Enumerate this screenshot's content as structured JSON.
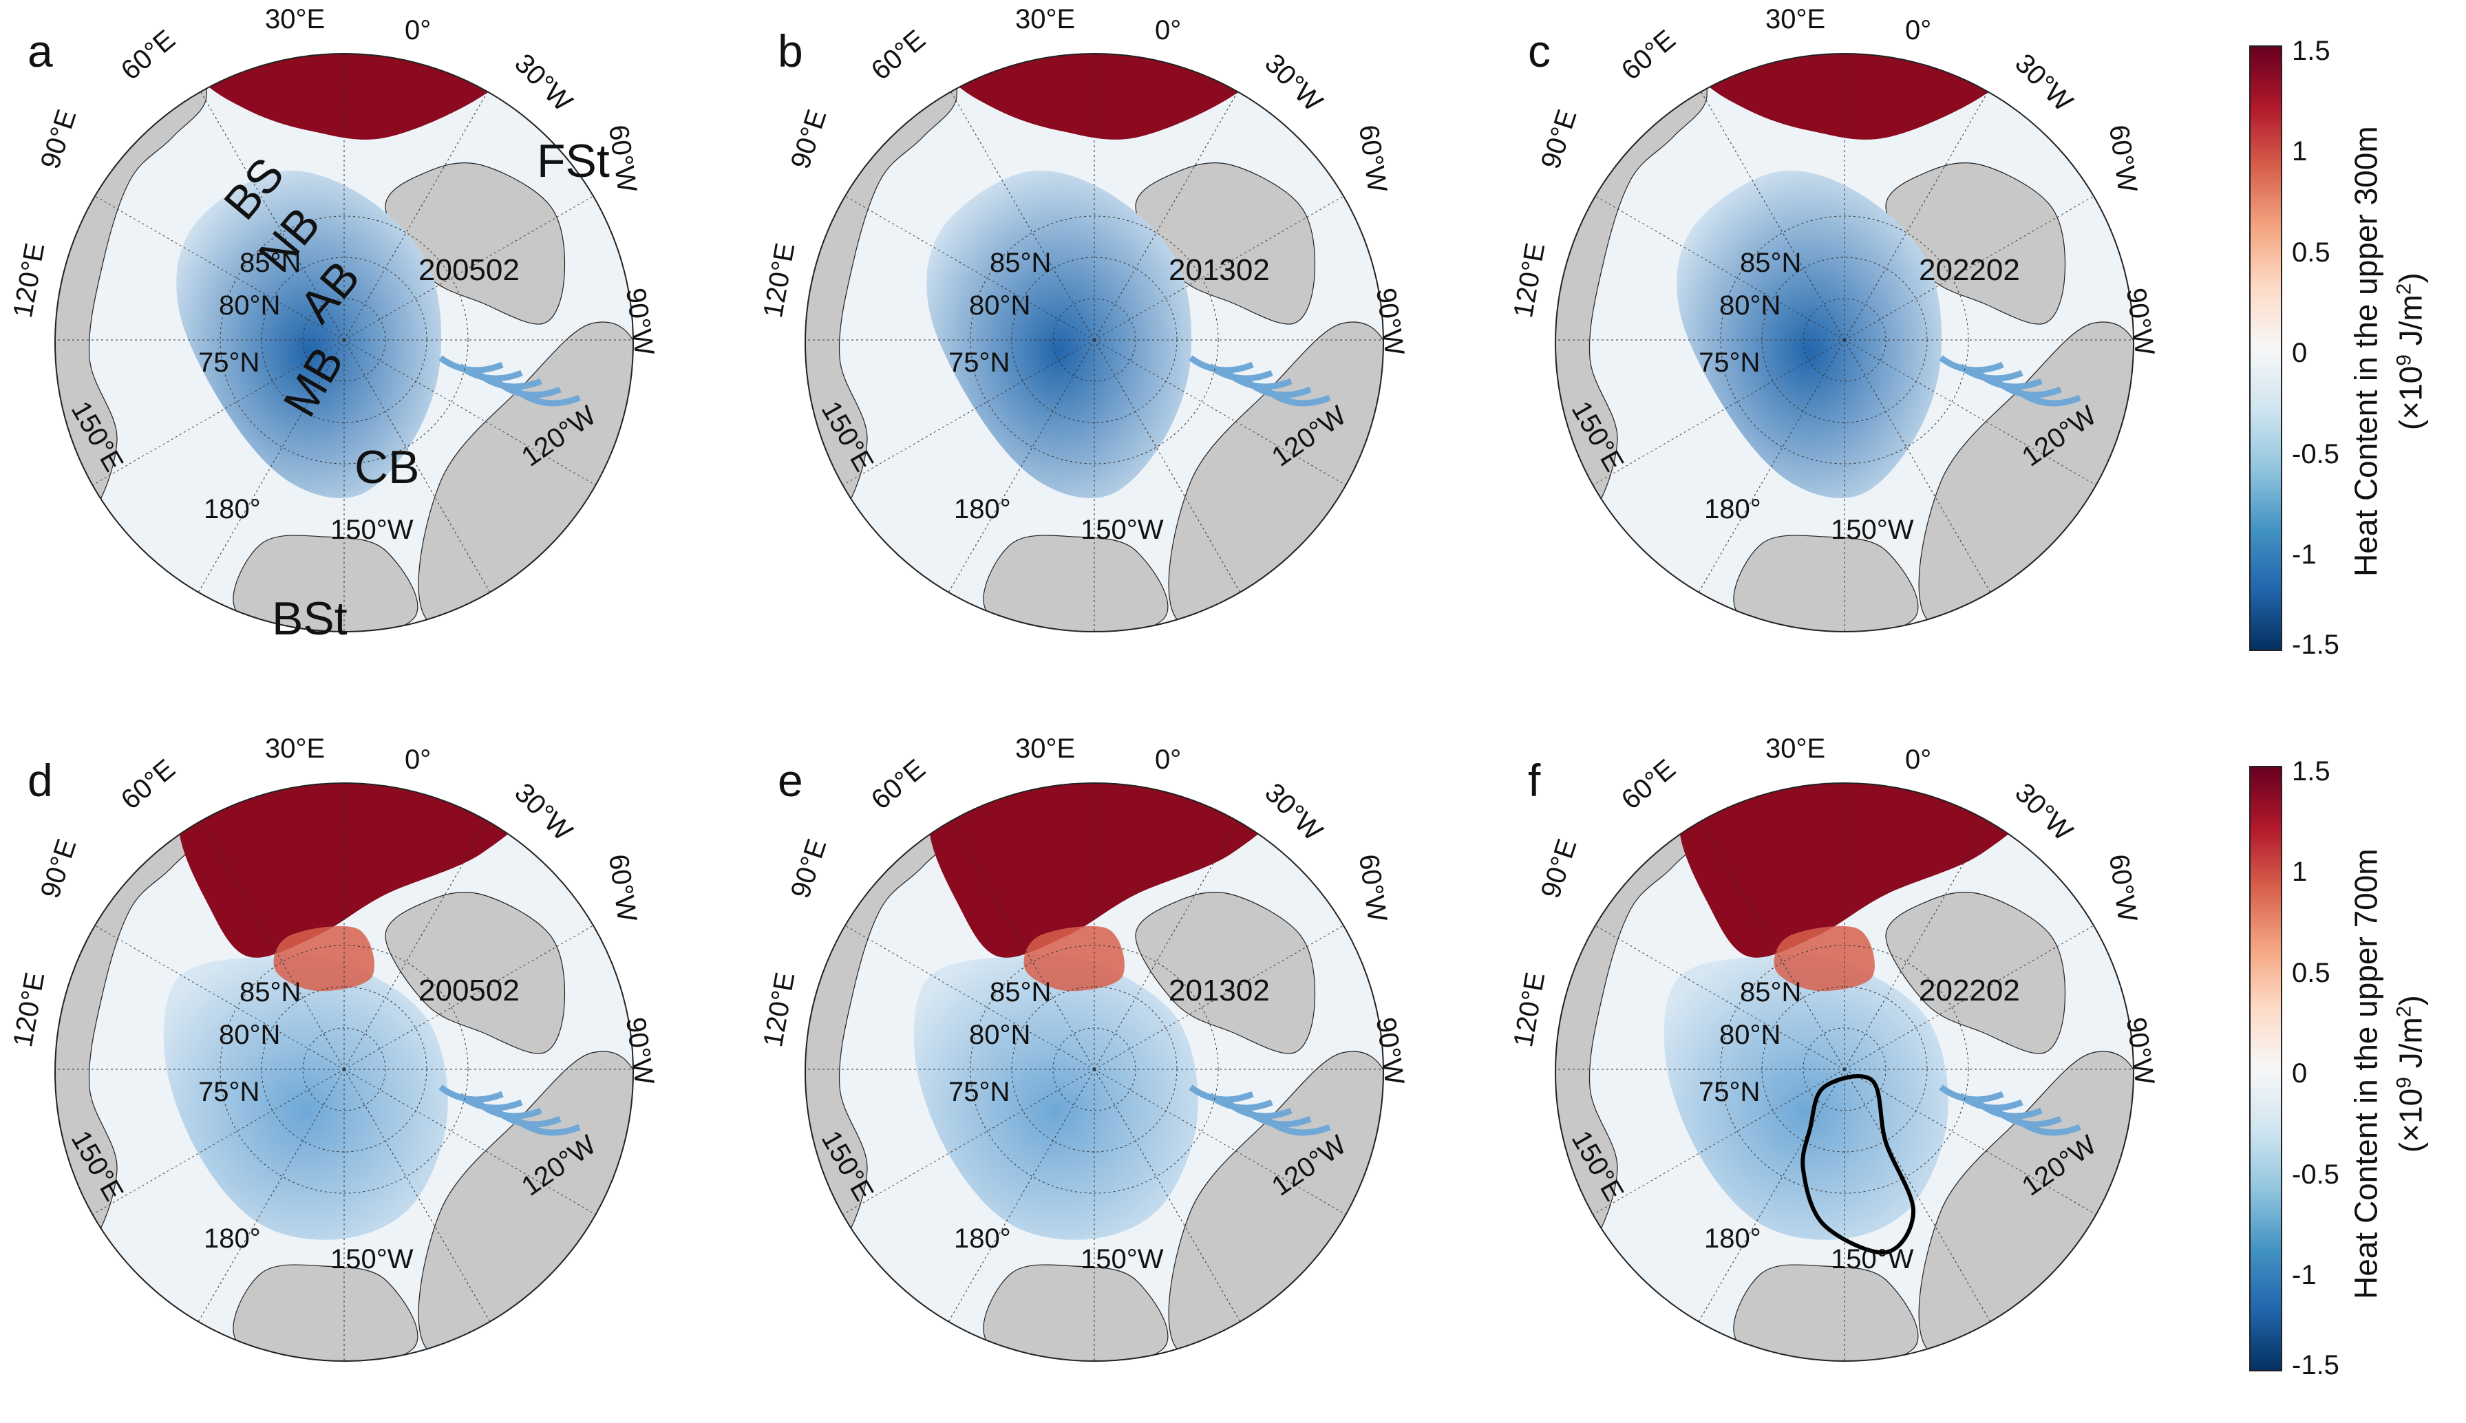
{
  "panels": [
    {
      "letter": "a",
      "date": "200502"
    },
    {
      "letter": "b",
      "date": "201302"
    },
    {
      "letter": "c",
      "date": "202202"
    },
    {
      "letter": "d",
      "date": "200502"
    },
    {
      "letter": "e",
      "date": "201302"
    },
    {
      "letter": "f",
      "date": "202202"
    }
  ],
  "map_labels": {
    "e30": "30°E",
    "zero": "0°",
    "e60": "60°E",
    "w30": "30°W",
    "e90": "90°E",
    "w60": "60°W",
    "e120": "120°E",
    "w90": "90°W",
    "e150": "150°E",
    "w120": "120°W",
    "d180": "180°",
    "w150": "150°W",
    "n85": "85°N",
    "n80": "80°N",
    "n75": "75°N"
  },
  "regions": {
    "BS": "BS",
    "NB": "NB",
    "AB": "AB",
    "MB": "MB",
    "CB": "CB",
    "FSt": "FSt",
    "BSt": "BSt"
  },
  "colorbars": [
    {
      "title_main": "Heat Content in the upper 300m",
      "units_pre": "(×10",
      "units_exp": "9",
      "units_mid": " J/m",
      "units_exp2": "2",
      "units_post": ")"
    },
    {
      "title_main": "Heat Content in the upper 700m",
      "units_pre": "(×10",
      "units_exp": "9",
      "units_mid": " J/m",
      "units_exp2": "2",
      "units_post": ")"
    }
  ],
  "colorbar_ticks": [
    "1.5",
    "1",
    "0.5",
    "0",
    "-0.5",
    "-1",
    "-1.5"
  ],
  "colors": {
    "land": "#c8c8c8",
    "ocean_shelf": "#eef3f8",
    "warm": "#7a0a1d",
    "cold": "#0d3f7d",
    "neutral": "#f7f7f7"
  },
  "chart_data": {
    "type": "heatmap",
    "description_variable": "Ocean heat content anomaly, Arctic polar stereographic maps",
    "color_range": [
      -1.5,
      1.5
    ],
    "colormap_stops": [
      "#08306b",
      "#2166ac",
      "#6fa8d6",
      "#d6e6f2",
      "#f7f7f7",
      "#f4bfa6",
      "#d6604d",
      "#8b0a1f"
    ],
    "rows": [
      "Heat Content in the upper 300m",
      "Heat Content in the upper 700m"
    ],
    "columns": [
      "200502",
      "201302",
      "202202"
    ]
  }
}
